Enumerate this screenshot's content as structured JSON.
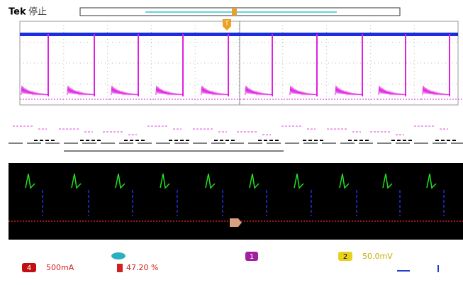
{
  "header": {
    "brand": "Tek",
    "status": "停止"
  },
  "footer": {
    "ch4_number": "4",
    "ch4_scale": "500mA",
    "trigger_position": "47.20 %",
    "ch1_number": "1",
    "ch2_number": "2",
    "ch2_scale": "50.0mV"
  }
}
